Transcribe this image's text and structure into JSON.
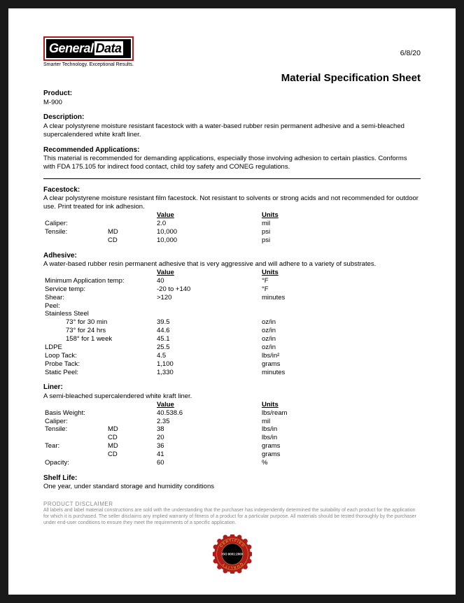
{
  "header": {
    "logo": {
      "part1": "General",
      "part2": "Data"
    },
    "tagline": "Smarter Technology. Exceptional Results.",
    "date": "6/8/20",
    "title": "Material Specification Sheet"
  },
  "product": {
    "label": "Product:",
    "name": "M-900"
  },
  "description": {
    "label": "Description:",
    "text": "A clear polystyrene moisture resistant facestock with a water-based rubber resin permanent adhesive and a semi-bleached supercalendered white kraft liner."
  },
  "recommended": {
    "label": "Recommended Applications:",
    "text": "This material is recommended for demanding applications, especially those involving adhesion to certain plastics. Conforms with FDA 175.105 for indirect food contact, child toy safety and CONEG regulations."
  },
  "facestock": {
    "label": "Facestock:",
    "text": "A clear polystyrene moisture resistant film facestock. Not resistant to solvents or strong acids and not recommended for outdoor use. Print treated for ink adhesion.",
    "headers": {
      "value": "Value",
      "units": "Units"
    },
    "rows": [
      {
        "label": "Caliper:",
        "sub": "",
        "value": "2.0",
        "unit": "mil"
      },
      {
        "label": "Tensile:",
        "sub": "MD",
        "value": "10,000",
        "unit": "psi"
      },
      {
        "label": "",
        "sub": "CD",
        "value": "10,000",
        "unit": "psi"
      }
    ]
  },
  "adhesive": {
    "label": "Adhesive:",
    "text": "A water-based rubber resin permanent adhesive that is very aggressive and will adhere to a variety of substrates.",
    "headers": {
      "value": "Value",
      "units": "Units"
    },
    "rows1": [
      {
        "label": "Minimum Application temp:",
        "value": "40",
        "unit": "°F"
      },
      {
        "label": "Service temp:",
        "value": "-20 to +140",
        "unit": "°F"
      },
      {
        "label": "Shear:",
        "value": ">120",
        "unit": "minutes"
      },
      {
        "label": "Peel:",
        "value": "",
        "unit": ""
      }
    ],
    "stainless_label": "Stainless Steel",
    "stainless": [
      {
        "label": "73° for 30 min",
        "value": "39.5",
        "unit": "oz/in"
      },
      {
        "label": "73° for 24 hrs",
        "value": "44.6",
        "unit": "oz/in"
      },
      {
        "label": "158° for 1 week",
        "value": "45.1",
        "unit": "oz/in"
      }
    ],
    "rows2": [
      {
        "label": "LDPE",
        "value": "25.5",
        "unit": "oz/in"
      },
      {
        "label": "Loop Tack:",
        "value": "4.5",
        "unit": "lbs/in²"
      },
      {
        "label": "Probe Tack:",
        "value": "1,100",
        "unit": "grams"
      },
      {
        "label": "Static Peel:",
        "value": "1,330",
        "unit": "minutes"
      }
    ]
  },
  "liner": {
    "label": "Liner:",
    "text": "A semi-bleached supercalendered white kraft liner.",
    "headers": {
      "value": "Value",
      "units": "Units"
    },
    "rows": [
      {
        "label": "Basis Weight:",
        "sub": "",
        "value": "40.538.6",
        "unit": "lbs/ream"
      },
      {
        "label": "Caliper:",
        "sub": "",
        "value": "2.35",
        "unit": "mil"
      },
      {
        "label": "Tensile:",
        "sub": "MD",
        "value": "38",
        "unit": "lbs/in"
      },
      {
        "label": "",
        "sub": "CD",
        "value": "20",
        "unit": "lbs/in"
      },
      {
        "label": "Tear:",
        "sub": "MD",
        "value": "36",
        "unit": "grams"
      },
      {
        "label": "",
        "sub": "CD",
        "value": "41",
        "unit": "grams"
      },
      {
        "label": "Opacity:",
        "sub": "",
        "value": "60",
        "unit": "%"
      }
    ]
  },
  "shelf": {
    "label": "Shelf Life:",
    "text": "One year, under standard storage and humidity conditions"
  },
  "disclaimer": {
    "title": "PRODUCT DISCLAIMER",
    "text": "All labels and label material constructions are sold with the understanding that the purchaser has independently determined the suitability of each product for the application for which it is purchased. The seller disclaims any implied warranty of fitness of a product for a particular purpose. All materials should be tested thoroughly by the purchaser under end-user conditions to ensure they meet the requirements of a specific application."
  },
  "badge": {
    "top": "CERTIFIED",
    "main": "ISO 9001:2000",
    "bottom": "QUALITY",
    "colors": {
      "red": "#b31b1b",
      "black": "#000000",
      "gold": "#c9a227",
      "white": "#ffffff"
    }
  }
}
